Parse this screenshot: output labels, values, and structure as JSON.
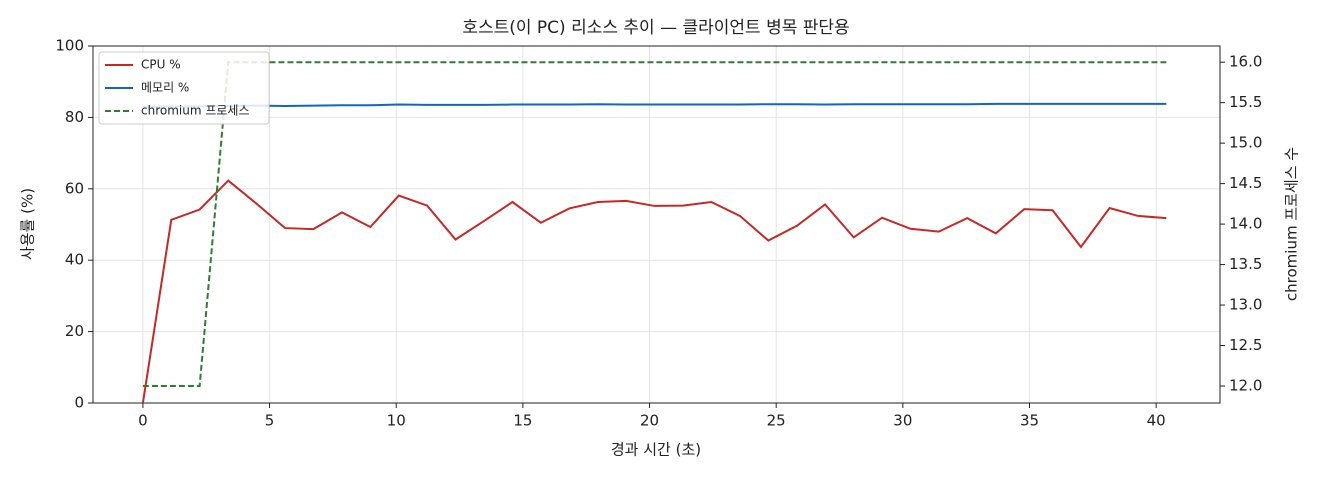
{
  "chart_data": {
    "type": "line",
    "title": "호스트(이 PC) 리소스 추이 — 클라이언트 병목 판단용",
    "xlabel": "경과 시간 (초)",
    "ylabel": "사용률 (%)",
    "y2label": "chromium 프로세스 수",
    "x": [
      0,
      1.12,
      2.24,
      3.37,
      4.49,
      5.61,
      6.73,
      7.86,
      8.98,
      10.1,
      11.22,
      12.34,
      13.47,
      14.59,
      15.71,
      16.83,
      17.96,
      19.08,
      20.2,
      21.32,
      22.44,
      23.57,
      24.69,
      25.81,
      26.93,
      28.06,
      29.18,
      30.3,
      31.42,
      32.54,
      33.67,
      34.79,
      35.91,
      37.03,
      38.16,
      39.28,
      40.4
    ],
    "series": [
      {
        "name": "CPU %",
        "color": "#c62828",
        "linestyle": "solid",
        "axis": "y",
        "values": [
          0,
          51.3,
          54.2,
          62.3,
          55.8,
          49.0,
          48.7,
          53.4,
          49.3,
          58.1,
          55.3,
          45.8,
          51.0,
          56.3,
          50.5,
          54.5,
          56.3,
          56.6,
          55.2,
          55.3,
          56.3,
          52.4,
          45.5,
          49.6,
          55.6,
          46.4,
          51.9,
          48.8,
          48.0,
          51.8,
          47.5,
          54.3,
          54.0,
          43.7,
          54.6,
          52.4,
          51.8
        ]
      },
      {
        "name": "메모리 %",
        "color": "#1565c0",
        "linestyle": "solid",
        "axis": "y",
        "values": [
          83.0,
          83.1,
          83.1,
          83.2,
          83.3,
          83.2,
          83.3,
          83.4,
          83.4,
          83.6,
          83.5,
          83.5,
          83.5,
          83.6,
          83.6,
          83.6,
          83.7,
          83.6,
          83.6,
          83.6,
          83.6,
          83.6,
          83.7,
          83.7,
          83.6,
          83.7,
          83.7,
          83.7,
          83.7,
          83.7,
          83.8,
          83.8,
          83.8,
          83.8,
          83.8,
          83.8,
          83.8
        ]
      },
      {
        "name": "chromium 프로세스",
        "color": "#2e7d32",
        "linestyle": "dashed",
        "axis": "y2",
        "values": [
          12,
          12,
          12,
          16,
          16,
          16,
          16,
          16,
          16,
          16,
          16,
          16,
          16,
          16,
          16,
          16,
          16,
          16,
          16,
          16,
          16,
          16,
          16,
          16,
          16,
          16,
          16,
          16,
          16,
          16,
          16,
          16,
          16,
          16,
          16,
          16,
          16
        ]
      }
    ],
    "xlim": [
      -1.97,
      42.52
    ],
    "xticks": [
      0,
      5,
      10,
      15,
      20,
      25,
      30,
      35,
      40
    ],
    "ylim": [
      0,
      100
    ],
    "yticks": [
      0,
      20,
      40,
      60,
      80,
      100
    ],
    "y2lim": [
      11.79,
      16.2
    ],
    "y2ticks": [
      {
        "value": 12,
        "label": "12.0"
      },
      {
        "value": 12.5,
        "label": "12.5"
      },
      {
        "value": 13,
        "label": "13.0"
      },
      {
        "value": 13.5,
        "label": "13.5"
      },
      {
        "value": 14,
        "label": "14.0"
      },
      {
        "value": 14.5,
        "label": "14.5"
      },
      {
        "value": 15,
        "label": "15.0"
      },
      {
        "value": 15.5,
        "label": "15.5"
      },
      {
        "value": 16,
        "label": "16.0"
      }
    ],
    "grid": true,
    "legend": "upper left"
  }
}
